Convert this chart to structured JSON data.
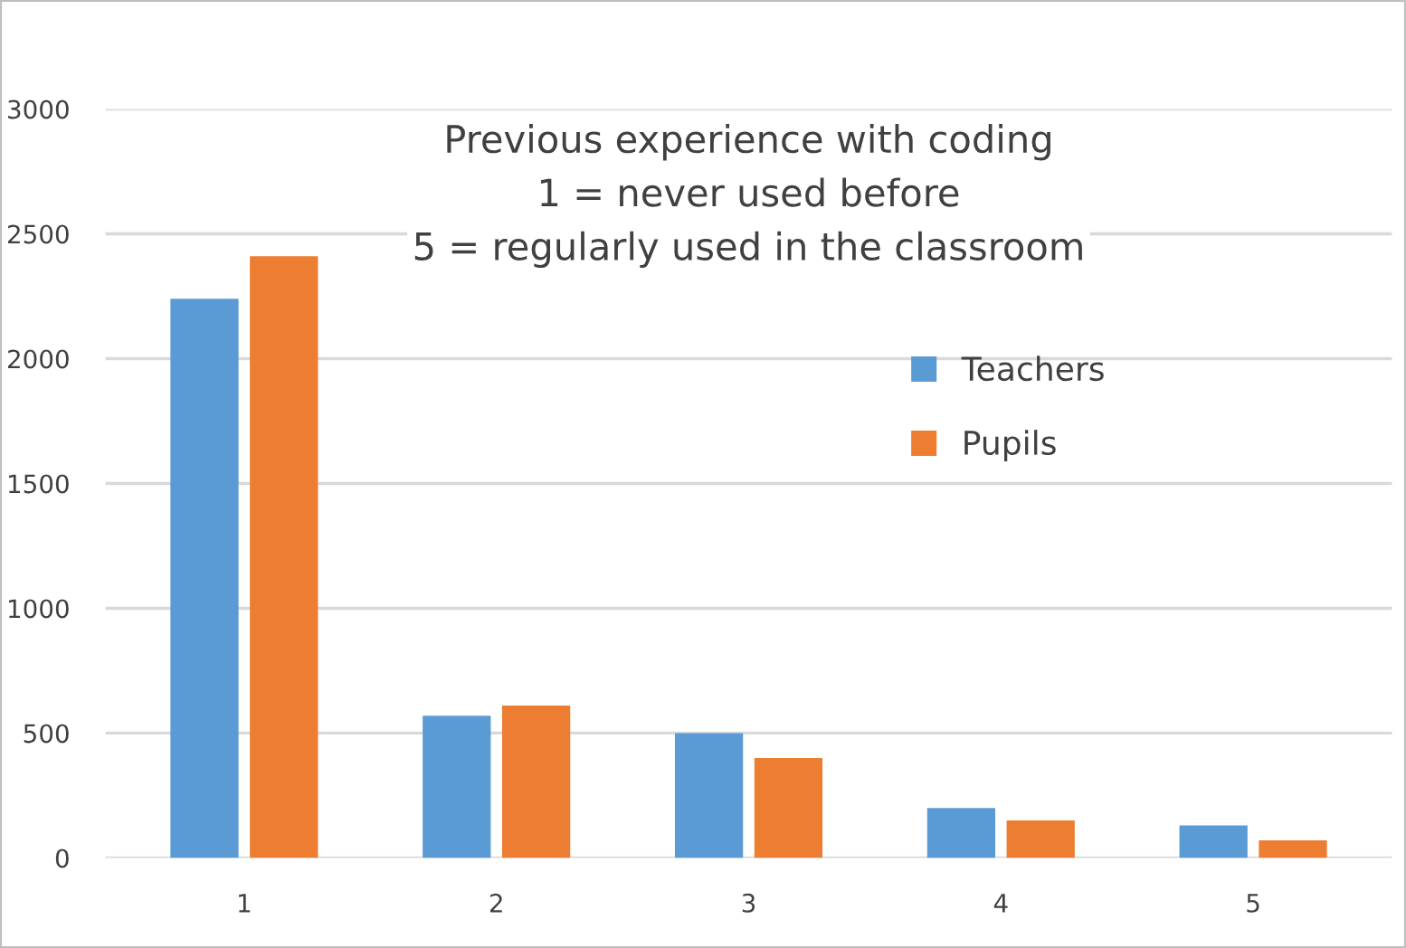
{
  "chart_data": {
    "type": "bar",
    "title": "Previous experience with coding\n1 = never used before\n5 = regularly used in the classroom",
    "categories": [
      "1",
      "2",
      "3",
      "4",
      "5"
    ],
    "series": [
      {
        "name": "Teachers",
        "color": "#5b9bd5",
        "values": [
          2240,
          570,
          500,
          200,
          130
        ]
      },
      {
        "name": "Pupils",
        "color": "#ed7d31",
        "values": [
          2410,
          610,
          400,
          150,
          70
        ]
      }
    ],
    "ylim": [
      0,
      3000
    ],
    "yticks": [
      0,
      500,
      1000,
      1500,
      2000,
      2500,
      3000
    ],
    "grid": "y",
    "legend": "right"
  }
}
